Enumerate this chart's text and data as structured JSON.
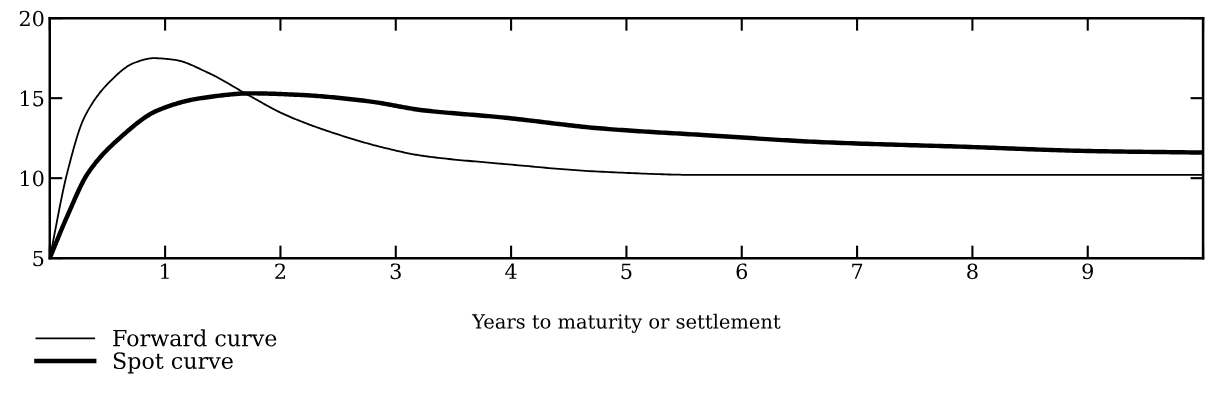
{
  "chart_data": {
    "type": "line",
    "xlabel": "Years to maturity or settlement",
    "xlim": [
      0,
      10
    ],
    "xticks": [
      {
        "value": 0,
        "label": null
      },
      1,
      2,
      3,
      4,
      5,
      6,
      7,
      8,
      9,
      {
        "value": 10,
        "label": null
      }
    ],
    "ylim": [
      5,
      20
    ],
    "yticks": [
      5,
      10,
      15,
      20
    ],
    "grid": false,
    "legend": "bottom left",
    "marker": "none",
    "line_style": "solid",
    "series": [
      {
        "name": "Forward curve",
        "color": "#000000",
        "x": [
          0,
          0.15,
          0.3,
          0.53,
          0.73,
          0.9,
          1.08,
          1.37,
          1.72,
          2.03,
          2.47,
          2.9,
          3.23,
          3.92,
          4.79,
          5.66,
          7,
          8,
          9,
          10
        ],
        "values": [
          5,
          10.3,
          13.8,
          16.1,
          17.2,
          17.5,
          17.4,
          16.6,
          15.2,
          14.0,
          12.8,
          11.9,
          11.4,
          10.9,
          10.4,
          10.2,
          10.2,
          10.2,
          10.2,
          10.2
        ]
      },
      {
        "name": "Spot curve",
        "color": "#000000",
        "x": [
          0,
          0.15,
          0.33,
          0.59,
          0.94,
          1.31,
          1.75,
          2.18,
          2.77,
          3.23,
          3.92,
          4.79,
          5.66,
          6.7,
          7.98,
          8.99,
          10
        ],
        "values": [
          5,
          7.6,
          10.3,
          12.4,
          14.25,
          15.0,
          15.3,
          15.2,
          14.8,
          14.25,
          13.8,
          13.1,
          12.7,
          12.25,
          11.95,
          11.7,
          11.6
        ]
      }
    ]
  }
}
